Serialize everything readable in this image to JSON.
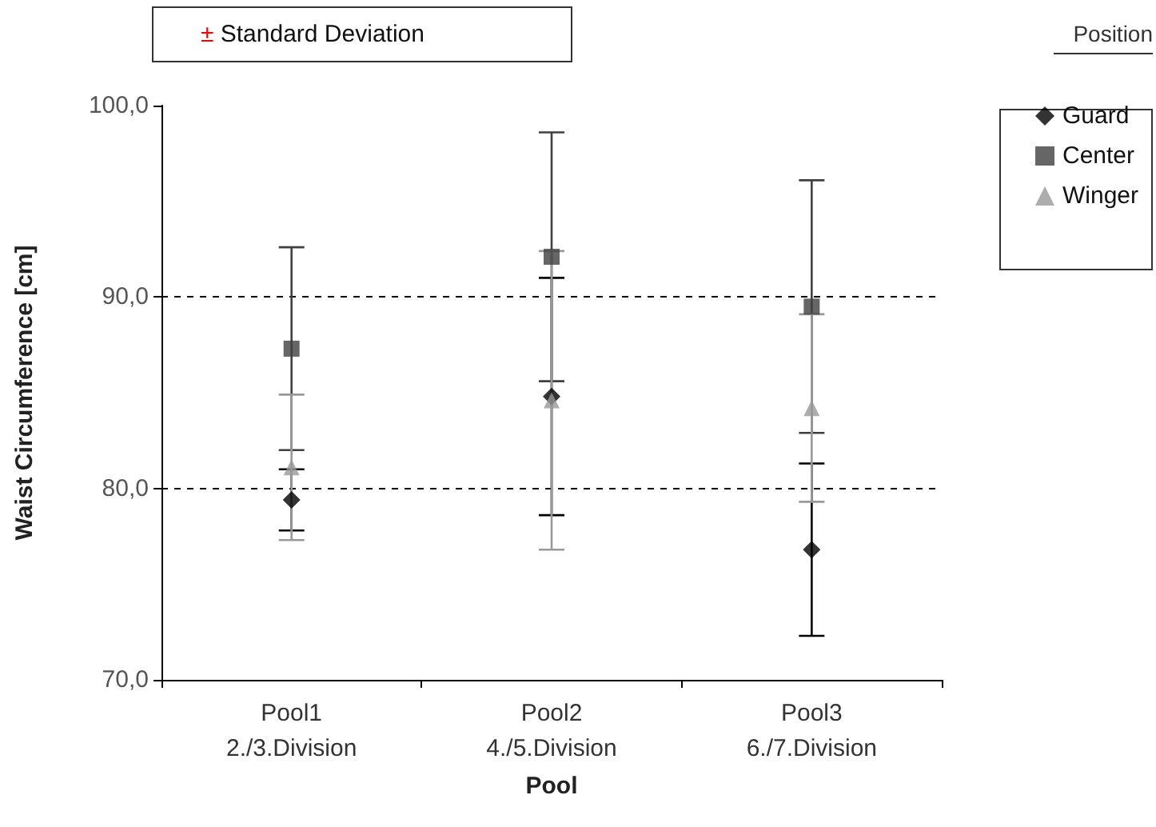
{
  "chart_data": {
    "type": "scatter",
    "xlabel": "Pool",
    "ylabel": "Waist Circumference [cm]",
    "legend_title": "Position",
    "annotations": [
      "± Standard Deviation"
    ],
    "categories": [
      "Pool1\n2./3.Division",
      "Pool2\n4./5.Division",
      "Pool3\n6./7.Division"
    ],
    "series": [
      {
        "name": "Guard",
        "color": "#000000",
        "marker": "diamond",
        "values": [
          79.4,
          84.8,
          76.8
        ],
        "errors": [
          1.6,
          6.2,
          4.5
        ]
      },
      {
        "name": "Center",
        "color": "#404040",
        "marker": "square",
        "values": [
          87.3,
          92.1,
          89.5
        ],
        "errors": [
          5.3,
          6.5,
          6.6
        ]
      },
      {
        "name": "Winger",
        "color": "#999999",
        "marker": "triangle",
        "values": [
          81.1,
          84.6,
          84.2
        ],
        "errors": [
          3.8,
          7.8,
          4.9
        ]
      }
    ],
    "ylim": [
      70,
      100
    ],
    "yticks": [
      {
        "value": 70,
        "label": "70,0"
      },
      {
        "value": 80,
        "label": "80,0"
      },
      {
        "value": 90,
        "label": "90,0"
      },
      {
        "value": 100,
        "label": "100,0"
      }
    ],
    "grid": "y",
    "legend": "top right"
  }
}
